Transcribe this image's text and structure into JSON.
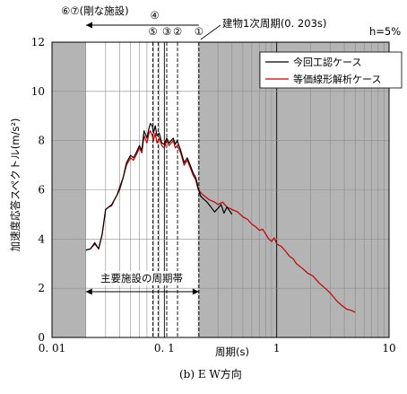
{
  "chart_data": {
    "type": "line",
    "xscale": "log",
    "xlim": [
      0.01,
      10
    ],
    "ylim": [
      0,
      12
    ],
    "yticks": [
      0,
      2,
      4,
      6,
      8,
      10,
      12
    ],
    "xticks": [
      0.01,
      0.1,
      1,
      10
    ],
    "xtick_labels": [
      "0. 01",
      "0. 1",
      "1",
      "10"
    ],
    "ytick_labels": [
      "0",
      "2",
      "4",
      "6",
      "8",
      "10",
      "12"
    ],
    "xlabel": "周期(s)",
    "ylabel": "加速度応答スペクトル(m/s²)",
    "damping_label": "h=5%",
    "caption": "(b) E W方向",
    "band_label": "主要施設の周期帯",
    "band_range": [
      0.02,
      0.203
    ],
    "shaded_regions": [
      [
        0.01,
        0.02
      ],
      [
        0.203,
        10
      ]
    ],
    "top_left_label": "⑥⑦(剛な施設)",
    "period_label": "建物1次周期(0. 203s)",
    "period_markers": [
      {
        "id": "①",
        "x": 0.203
      },
      {
        "id": "②",
        "x": 0.131
      },
      {
        "id": "③",
        "x": 0.105
      },
      {
        "id": "④",
        "x": 0.088
      },
      {
        "id": "⑤",
        "x": 0.079
      }
    ],
    "colors": {
      "black": "#000000",
      "red": "#c00000",
      "shade": "#b4b4b4"
    },
    "series": [
      {
        "name": "今回工認ケース",
        "color": "#000000",
        "x": [
          0.02,
          0.022,
          0.024,
          0.026,
          0.028,
          0.03,
          0.032,
          0.034,
          0.036,
          0.038,
          0.04,
          0.043,
          0.046,
          0.05,
          0.053,
          0.056,
          0.06,
          0.063,
          0.066,
          0.07,
          0.073,
          0.075,
          0.078,
          0.08,
          0.083,
          0.086,
          0.09,
          0.095,
          0.1,
          0.105,
          0.11,
          0.115,
          0.12,
          0.125,
          0.13,
          0.14,
          0.15,
          0.16,
          0.17,
          0.18,
          0.19,
          0.2,
          0.21,
          0.22,
          0.24,
          0.26,
          0.28,
          0.3,
          0.32,
          0.34,
          0.36,
          0.38,
          0.4
        ],
        "y": [
          3.55,
          3.6,
          3.85,
          3.6,
          4.2,
          5.2,
          5.3,
          5.4,
          5.6,
          5.8,
          6.1,
          6.5,
          7.1,
          7.4,
          7.3,
          7.5,
          7.8,
          7.6,
          8.4,
          8.1,
          8.5,
          8.7,
          8.6,
          8.3,
          8.6,
          8.2,
          8.3,
          7.9,
          7.85,
          8.1,
          7.9,
          8.0,
          8.1,
          7.85,
          8.0,
          7.6,
          7.1,
          7.3,
          7.0,
          6.7,
          6.5,
          6.1,
          5.75,
          5.65,
          5.5,
          5.3,
          5.1,
          5.25,
          5.4,
          5.05,
          5.3,
          5.15,
          5.0
        ]
      },
      {
        "name": "等価線形解析ケース",
        "color": "#c00000",
        "x": [
          0.02,
          0.022,
          0.024,
          0.026,
          0.028,
          0.03,
          0.032,
          0.034,
          0.036,
          0.038,
          0.04,
          0.043,
          0.046,
          0.05,
          0.053,
          0.056,
          0.06,
          0.063,
          0.066,
          0.07,
          0.073,
          0.075,
          0.078,
          0.08,
          0.083,
          0.086,
          0.09,
          0.095,
          0.1,
          0.105,
          0.11,
          0.115,
          0.12,
          0.125,
          0.13,
          0.14,
          0.15,
          0.16,
          0.17,
          0.18,
          0.19,
          0.2,
          0.22,
          0.25,
          0.28,
          0.3,
          0.33,
          0.36,
          0.4,
          0.45,
          0.5,
          0.55,
          0.6,
          0.65,
          0.7,
          0.75,
          0.8,
          0.85,
          0.9,
          0.95,
          1.0,
          1.1,
          1.2,
          1.3,
          1.4,
          1.5,
          1.7,
          1.9,
          2.1,
          2.4,
          2.7,
          3.0,
          3.4,
          3.8,
          4.2,
          4.6,
          5.0
        ],
        "y": [
          3.55,
          3.6,
          3.8,
          3.6,
          4.2,
          5.2,
          5.3,
          5.35,
          5.6,
          5.8,
          6.0,
          6.5,
          7.0,
          7.3,
          7.2,
          7.4,
          7.7,
          7.5,
          8.2,
          7.9,
          8.3,
          8.4,
          8.2,
          8.0,
          8.3,
          7.9,
          8.1,
          7.8,
          7.7,
          8.0,
          7.8,
          7.9,
          8.0,
          7.7,
          7.8,
          7.5,
          7.0,
          7.2,
          6.9,
          6.6,
          6.4,
          6.0,
          5.8,
          5.6,
          5.5,
          5.4,
          5.5,
          5.3,
          5.2,
          5.1,
          4.9,
          4.8,
          4.6,
          4.5,
          4.35,
          4.4,
          4.2,
          4.0,
          3.9,
          4.05,
          3.8,
          3.7,
          3.5,
          3.3,
          3.2,
          3.0,
          2.8,
          2.6,
          2.5,
          2.2,
          2.0,
          1.8,
          1.5,
          1.3,
          1.15,
          1.1,
          1.02
        ]
      }
    ]
  }
}
